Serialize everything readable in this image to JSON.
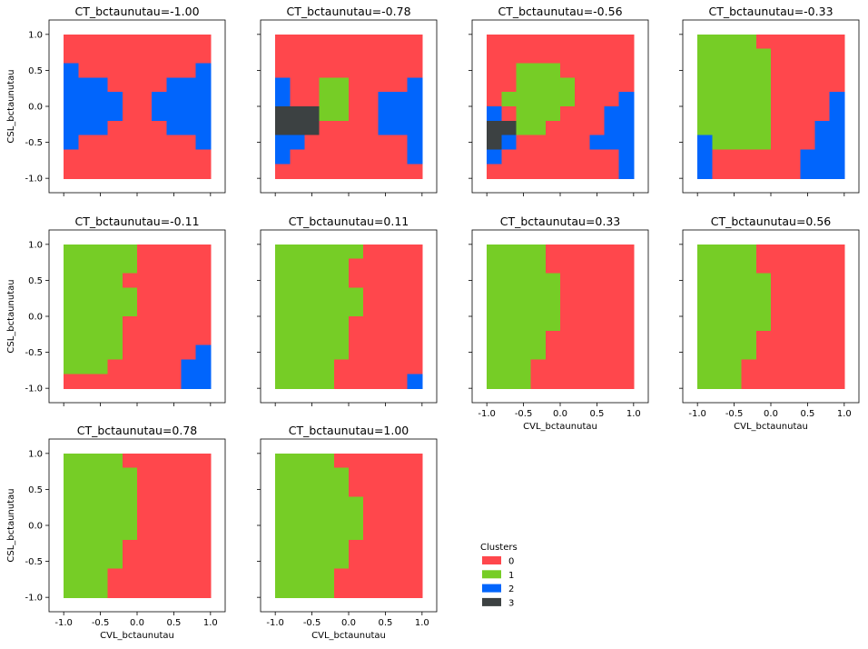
{
  "chart_data": {
    "type": "heatmap",
    "legend": {
      "title": "Clusters",
      "placement": "lower-center",
      "entries": [
        {
          "label": "0",
          "color": "#ff474c"
        },
        {
          "label": "1",
          "color": "#76cd26"
        },
        {
          "label": "2",
          "color": "#0165fc"
        },
        {
          "label": "3",
          "color": "#3c4142"
        }
      ]
    },
    "xlabel": "CVL_bctaunutau",
    "ylabel": "CSL_bctaunutau",
    "xlim": [
      -1.2,
      1.2
    ],
    "ylim": [
      -1.2,
      1.2
    ],
    "xticks": [
      "-1.0",
      "-0.5",
      "0.0",
      "0.5",
      "1.0"
    ],
    "yticks": [
      "1.0",
      "0.5",
      "0.0",
      "-0.5",
      "-1.0"
    ],
    "grid": [
      10,
      10
    ],
    "panels": [
      {
        "title": "CT_bctaunutau=-1.00",
        "cells": [
          "0000000000",
          "0000000000",
          "2000000002",
          "2220000222",
          "2222002222",
          "2222002222",
          "2220000222",
          "2000000002",
          "0000000000",
          "0000000000"
        ]
      },
      {
        "title": "CT_bctaunutau=-0.78",
        "cells": [
          "0000000000",
          "0000000000",
          "0000000000",
          "2001100002",
          "2001100222",
          "3331100222",
          "3330000222",
          "2200000002",
          "2000000002",
          "0000000000"
        ]
      },
      {
        "title": "CT_bctaunutau=-0.56",
        "cells": [
          "0000000000",
          "0000000000",
          "0011100000",
          "0011110000",
          "0111110002",
          "2011100022",
          "3311000022",
          "3200000222",
          "2000000002",
          "0000000002"
        ]
      },
      {
        "title": "CT_bctaunutau=-0.33",
        "cells": [
          "1111000000",
          "1111100000",
          "1111100000",
          "1111100000",
          "1111100002",
          "1111100002",
          "1111100022",
          "2111100022",
          "2000000222",
          "2000000222"
        ]
      },
      {
        "title": "CT_bctaunutau=-0.11",
        "cells": [
          "1111100000",
          "1111100000",
          "1111000000",
          "1111100000",
          "1111100000",
          "1111000000",
          "1111000000",
          "1111000002",
          "1110000022",
          "0000000022"
        ]
      },
      {
        "title": "CT_bctaunutau=0.11",
        "cells": [
          "1111110000",
          "1111100000",
          "1111100000",
          "1111110000",
          "1111110000",
          "1111100000",
          "1111100000",
          "1111100000",
          "1111000000",
          "1111000002"
        ]
      },
      {
        "title": "CT_bctaunutau=0.33",
        "cells": [
          "1111000000",
          "1111000000",
          "1111100000",
          "1111100000",
          "1111100000",
          "1111100000",
          "1111000000",
          "1111000000",
          "1110000000",
          "1110000000"
        ]
      },
      {
        "title": "CT_bctaunutau=0.56",
        "cells": [
          "1111000000",
          "1111000000",
          "1111100000",
          "1111100000",
          "1111100000",
          "1111100000",
          "1111000000",
          "1111000000",
          "1110000000",
          "1110000000"
        ]
      },
      {
        "title": "CT_bctaunutau=0.78",
        "cells": [
          "1111000000",
          "1111100000",
          "1111100000",
          "1111100000",
          "1111100000",
          "1111100000",
          "1111000000",
          "1111000000",
          "1110000000",
          "1110000000"
        ]
      },
      {
        "title": "CT_bctaunutau=1.00",
        "cells": [
          "1111000000",
          "1111100000",
          "1111100000",
          "1111110000",
          "1111110000",
          "1111110000",
          "1111100000",
          "1111100000",
          "1111000000",
          "1111000000"
        ]
      }
    ]
  }
}
